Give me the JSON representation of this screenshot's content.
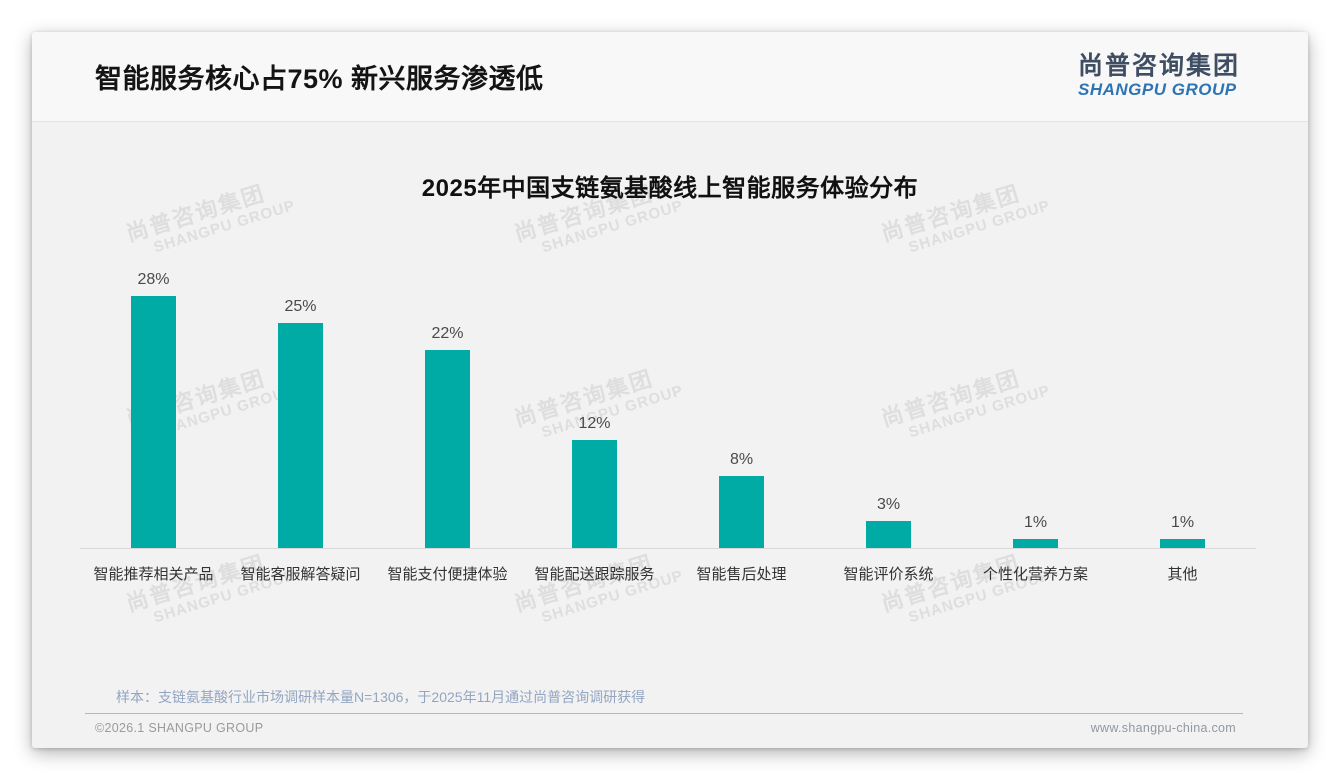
{
  "header": {
    "title": "智能服务核心占75% 新兴服务渗透低",
    "logo_cn": "尚普咨询集团",
    "logo_en": "SHANGPU GROUP"
  },
  "watermark": {
    "cn": "尚普咨询集团",
    "en": "SHANGPU GROUP"
  },
  "chart_data": {
    "type": "bar",
    "title": "2025年中国支链氨基酸线上智能服务体验分布",
    "categories": [
      "智能推荐相关产品",
      "智能客服解答疑问",
      "智能支付便捷体验",
      "智能配送跟踪服务",
      "智能售后处理",
      "智能评价系统",
      "个性化营养方案",
      "其他"
    ],
    "values": [
      28,
      25,
      22,
      12,
      8,
      3,
      1,
      1
    ],
    "value_labels": [
      "28%",
      "25%",
      "22%",
      "12%",
      "8%",
      "3%",
      "1%",
      "1%"
    ],
    "xlabel": "",
    "ylabel": "",
    "ylim": [
      0,
      30
    ],
    "grid": false,
    "legend": "none",
    "bar_color": "#00aba6"
  },
  "footer": {
    "note": "样本：支链氨基酸行业市场调研样本量N=1306，于2025年11月通过尚普咨询调研获得",
    "copyright": "©2026.1 SHANGPU GROUP",
    "website": "www.shangpu-china.com"
  }
}
